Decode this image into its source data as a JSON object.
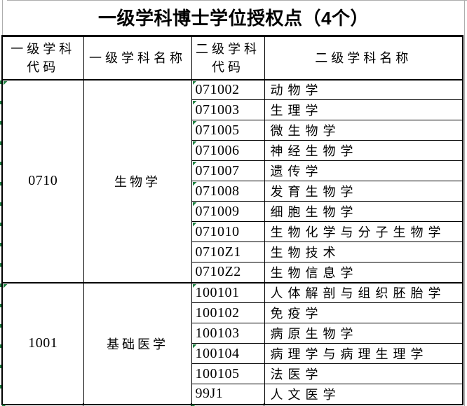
{
  "title": "一级学科博士学位授权点（4个）",
  "table": {
    "headers": {
      "l1_code": "一级学科\n代码",
      "l1_name": "一级学科名称",
      "l2_code": "二级学科\n代码",
      "l2_name": "二级学科名称"
    },
    "groups": [
      {
        "code": "0710",
        "name": "生物学",
        "flag": true,
        "children": [
          {
            "code": "071002",
            "name": "动物学",
            "flag": true
          },
          {
            "code": "071003",
            "name": "生理学",
            "flag": true
          },
          {
            "code": "071005",
            "name": "微生物学",
            "flag": true
          },
          {
            "code": "071006",
            "name": "神经生物学",
            "flag": true
          },
          {
            "code": "071007",
            "name": "遗传学",
            "flag": true
          },
          {
            "code": "071008",
            "name": "发育生物学",
            "flag": true
          },
          {
            "code": "071009",
            "name": "细胞生物学",
            "flag": true
          },
          {
            "code": "071010",
            "name": "生物化学与分子生物学",
            "flag": true
          },
          {
            "code": "0710Z1",
            "name": "生物技术",
            "flag": false
          },
          {
            "code": "0710Z2",
            "name": "生物信息学",
            "flag": false
          }
        ]
      },
      {
        "code": "1001",
        "name": "基础医学",
        "flag": true,
        "children": [
          {
            "code": "100101",
            "name": "人体解剖与组织胚胎学",
            "flag": true
          },
          {
            "code": "100102",
            "name": "免疫学",
            "flag": false
          },
          {
            "code": "100103",
            "name": "病原生物学",
            "flag": false
          },
          {
            "code": "100104",
            "name": "病理学与病理生理学",
            "flag": true
          },
          {
            "code": "100105",
            "name": "法医学",
            "flag": false
          },
          {
            "code": "99J1",
            "name": "人文医学",
            "flag": false
          }
        ]
      }
    ]
  },
  "colors": {
    "flag_green": "#1d8040",
    "border_black": "#000000",
    "gridline_gray": "#adadad"
  }
}
